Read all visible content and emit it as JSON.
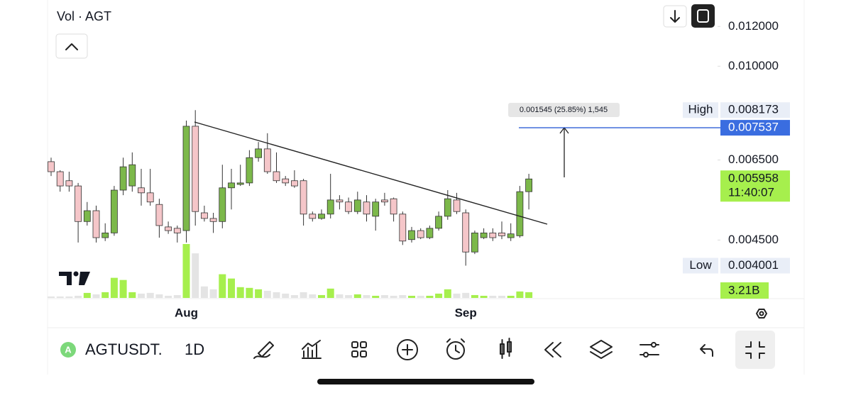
{
  "header": {
    "indicator": "Vol · AGT"
  },
  "chart_data": {
    "type": "candlestick",
    "categories": [
      null,
      null,
      null,
      null,
      null,
      null,
      null,
      null,
      null,
      null,
      null,
      null,
      null,
      null,
      null,
      "Aug",
      null,
      null,
      null,
      null,
      null,
      null,
      null,
      null,
      null,
      null,
      null,
      null,
      null,
      null,
      null,
      null,
      null,
      null,
      null,
      null,
      null,
      null,
      null,
      null,
      null,
      null,
      null,
      null,
      null,
      null,
      "Sep",
      null,
      null,
      null,
      null,
      null,
      null,
      null
    ],
    "open": [
      0.00645,
      0.00616,
      0.00591,
      0.00577,
      0.0049,
      0.00515,
      0.00455,
      0.00465,
      0.00566,
      0.00577,
      0.00572,
      0.00559,
      0.0053,
      0.00478,
      0.00475,
      0.0047,
      0.00759,
      0.0051,
      0.00497,
      0.0049,
      0.00572,
      0.00581,
      0.00585,
      0.00657,
      0.00684,
      0.00616,
      0.00596,
      0.00591,
      0.00591,
      0.00507,
      0.00497,
      0.00507,
      0.00541,
      0.00536,
      0.00513,
      0.00536,
      0.00502,
      0.00541,
      0.00544,
      0.00507,
      0.00451,
      0.0047,
      0.00455,
      0.00475,
      0.00502,
      0.00541,
      0.0051,
      0.00426,
      0.00455,
      0.00465,
      0.00465,
      0.00455,
      0.00459,
      0.00562
    ],
    "high": [
      0.00657,
      0.0062,
      0.00616,
      0.00585,
      0.00536,
      0.00527,
      0.00486,
      0.00577,
      0.00657,
      0.00673,
      0.00624,
      0.00624,
      0.00544,
      0.0049,
      0.00481,
      0.00779,
      0.008173,
      0.00527,
      0.0051,
      0.00636,
      0.00624,
      0.00636,
      0.0068,
      0.00706,
      0.00735,
      0.00673,
      0.00604,
      0.0062,
      0.00596,
      0.00513,
      0.00518,
      0.0061,
      0.00553,
      0.00547,
      0.00562,
      0.00553,
      0.00544,
      0.00559,
      0.00547,
      0.00513,
      0.00478,
      0.00475,
      0.00481,
      0.00513,
      0.00566,
      0.00559,
      0.00518,
      0.0047,
      0.00475,
      0.00475,
      0.0049,
      0.00486,
      0.00577,
      0.0061
    ],
    "low": [
      0.00604,
      0.00562,
      0.00562,
      0.00445,
      0.00481,
      0.00445,
      0.00448,
      0.00459,
      0.00553,
      0.00562,
      0.00527,
      0.00527,
      0.00455,
      0.00463,
      0.00445,
      0.00445,
      0.00481,
      0.0049,
      0.00465,
      0.00475,
      0.00518,
      0.00577,
      0.00577,
      0.00645,
      0.0061,
      0.00585,
      0.00577,
      0.00572,
      0.00481,
      0.0049,
      0.00494,
      0.00497,
      0.00518,
      0.00507,
      0.00507,
      0.0049,
      0.0047,
      0.00527,
      0.0049,
      0.0044,
      0.00445,
      0.00452,
      0.00452,
      0.0047,
      0.00494,
      0.00507,
      0.004001,
      0.00422,
      0.00452,
      0.00448,
      0.00452,
      0.00448,
      0.00455,
      0.00518
    ],
    "close": [
      0.00616,
      0.00577,
      0.00577,
      0.0049,
      0.00515,
      0.00455,
      0.00465,
      0.00566,
      0.0063,
      0.00636,
      0.00559,
      0.00536,
      0.00481,
      0.0047,
      0.00465,
      0.00759,
      0.00513,
      0.00497,
      0.0049,
      0.00572,
      0.00585,
      0.00585,
      0.00657,
      0.00684,
      0.00616,
      0.00591,
      0.00585,
      0.00577,
      0.00507,
      0.00497,
      0.00507,
      0.00541,
      0.00536,
      0.00513,
      0.00541,
      0.00507,
      0.00536,
      0.00536,
      0.00507,
      0.00448,
      0.0047,
      0.00455,
      0.00475,
      0.00502,
      0.00544,
      0.00513,
      0.00426,
      0.00465,
      0.00465,
      0.00455,
      0.00459,
      0.00463,
      0.00562,
      0.005958
    ],
    "volume": [
      0.8,
      0.8,
      0.8,
      1.2,
      2.8,
      2.0,
      3.2,
      11.2,
      10.0,
      3.2,
      2.4,
      2.8,
      2.0,
      1.2,
      1.6,
      30.0,
      24.8,
      6.4,
      4.8,
      13.2,
      10.8,
      6.0,
      5.6,
      4.8,
      4.0,
      3.2,
      2.4,
      1.6,
      3.2,
      2.0,
      1.6,
      5.2,
      2.0,
      1.6,
      2.0,
      1.6,
      1.2,
      1.6,
      1.2,
      1.6,
      1.2,
      1.2,
      1.2,
      2.4,
      4.8,
      2.4,
      2.8,
      1.6,
      1.2,
      1.2,
      1.2,
      1.2,
      3.6,
      3.21
    ],
    "volume_label": "3.21B",
    "ylim": [
      0.00345,
      0.01355
    ],
    "log_scale": true,
    "yticks": [
      {
        "value": 0.012,
        "label": "0.012000"
      },
      {
        "value": 0.01,
        "label": "0.010000"
      },
      {
        "value": 0.0065,
        "label": "0.006500"
      },
      {
        "value": 0.0045,
        "label": "0.004500"
      }
    ],
    "up_color": "#7cb84a",
    "down_color": "#f5c6c9",
    "volume_up_color": "#a6ef4d",
    "volume_down_color": "#e4e4e4",
    "high_marker": {
      "label": "High",
      "value": 0.008173
    },
    "low_marker": {
      "label": "Low",
      "value": 0.004001
    },
    "last_price": {
      "value": 0.005958,
      "countdown": "11:40:07"
    },
    "measure": {
      "value": 0.007537,
      "label": "0.001545 (25.85%) 1,545"
    }
  },
  "toolbar": {
    "symbol": "AGTUSDT.",
    "interval": "1D"
  }
}
